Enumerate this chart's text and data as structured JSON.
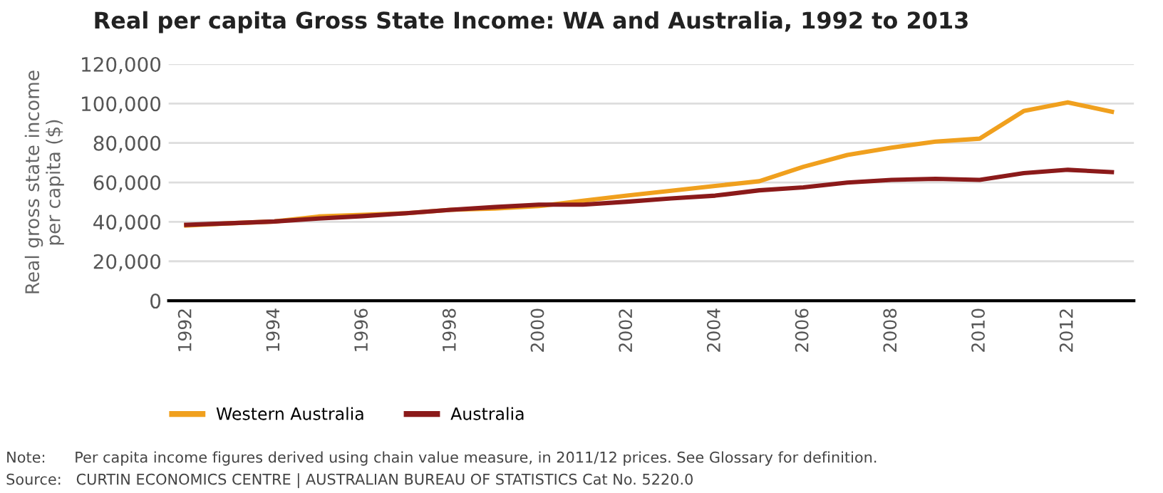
{
  "chart_data": {
    "type": "line",
    "title": "Real per capita Gross State Income: WA and Australia, 1992 to 2013",
    "ylabel": "Real gross state income\nper capita ($)",
    "x": [
      1992,
      1993,
      1994,
      1995,
      1996,
      1997,
      1998,
      1999,
      2000,
      2001,
      2002,
      2003,
      2004,
      2005,
      2006,
      2007,
      2008,
      2009,
      2010,
      2011,
      2012,
      2013
    ],
    "series": [
      {
        "name": "Western Australia",
        "color": "#f0a01e",
        "values": [
          38100,
          39300,
          40200,
          42700,
          43600,
          44400,
          46100,
          46800,
          48000,
          50700,
          53300,
          55800,
          58200,
          60600,
          67900,
          73900,
          77600,
          80700,
          82200,
          96200,
          100600,
          95800
        ]
      },
      {
        "name": "Australia",
        "color": "#8b1a1a",
        "values": [
          38500,
          39300,
          40200,
          41700,
          42900,
          44400,
          46100,
          47500,
          48700,
          48700,
          50200,
          51900,
          53300,
          56000,
          57500,
          59900,
          61300,
          61800,
          61300,
          64700,
          66400,
          65200
        ]
      }
    ],
    "xlim": [
      1991.6,
      2013.5
    ],
    "xticks": [
      1992,
      1994,
      1996,
      1998,
      2000,
      2002,
      2004,
      2006,
      2008,
      2010,
      2012
    ],
    "ylim": [
      0,
      120000
    ],
    "yticks": [
      {
        "value": 0,
        "label": "0"
      },
      {
        "value": 20000,
        "label": "20,000"
      },
      {
        "value": 40000,
        "label": "40,000"
      },
      {
        "value": 60000,
        "label": "60,000"
      },
      {
        "value": 80000,
        "label": "80,000"
      },
      {
        "value": 100000,
        "label": "100,000"
      },
      {
        "value": 120000,
        "label": "120,000"
      }
    ],
    "grid": "y",
    "legend": "bottom",
    "marker": "none",
    "line_style": "solid",
    "annotations": [
      "Note:      Per capita income figures derived using chain value measure, in 2011/12 prices. See Glossary for definition.",
      "Source:   CURTIN ECONOMICS CENTRE | AUSTRALIAN BUREAU OF STATISTICS Cat No. 5220.0"
    ]
  }
}
